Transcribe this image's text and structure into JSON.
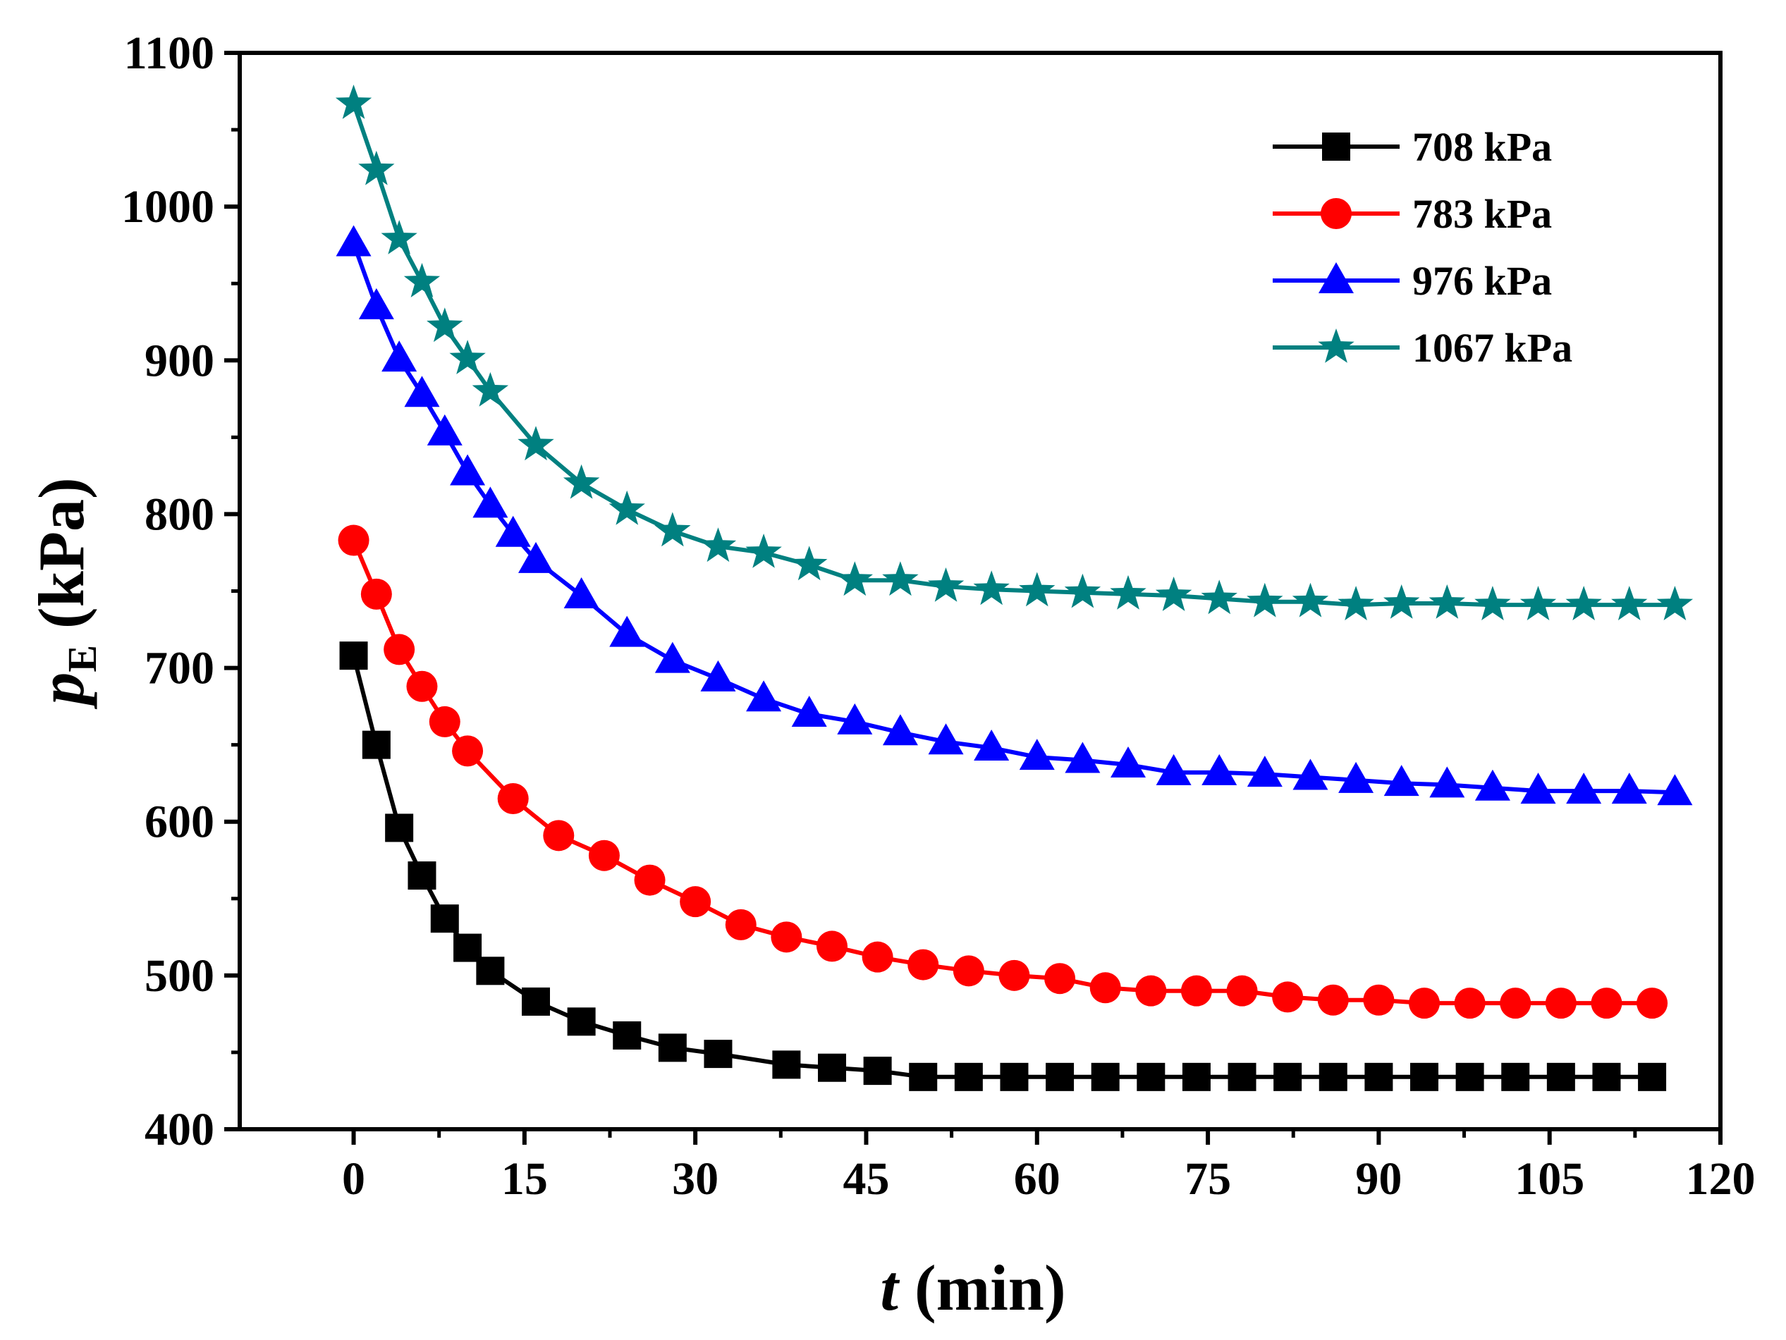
{
  "chart_data": {
    "type": "line",
    "title": "",
    "xlabel": {
      "var": "t",
      "unit": "(min)"
    },
    "ylabel": {
      "var": "p",
      "sub": "E",
      "unit": "(kPa)"
    },
    "xlim": [
      -10,
      120
    ],
    "ylim": [
      400,
      1100
    ],
    "xticks": [
      0,
      15,
      30,
      45,
      60,
      75,
      90,
      105,
      120
    ],
    "yticks": [
      400,
      500,
      600,
      700,
      800,
      900,
      1000,
      1100
    ],
    "legend_position": "top-right",
    "grid": false,
    "series": [
      {
        "name": "708 kPa",
        "color": "#000000",
        "marker": "square",
        "x": [
          0,
          2,
          4,
          6,
          8,
          10,
          12,
          16,
          20,
          24,
          28,
          32,
          38,
          42,
          46,
          50,
          54,
          58,
          62,
          66,
          70,
          74,
          78,
          82,
          86,
          90,
          94,
          98,
          102,
          106,
          110,
          114
        ],
        "y": [
          708,
          650,
          596,
          565,
          537,
          518,
          503,
          483,
          470,
          461,
          453,
          449,
          442,
          440,
          438,
          434,
          434,
          434,
          434,
          434,
          434,
          434,
          434,
          434,
          434,
          434,
          434,
          434,
          434,
          434,
          434,
          434
        ]
      },
      {
        "name": "783 kPa",
        "color": "#ff0000",
        "marker": "circle",
        "x": [
          0,
          2,
          4,
          6,
          8,
          10,
          14,
          18,
          22,
          26,
          30,
          34,
          38,
          42,
          46,
          50,
          54,
          58,
          62,
          66,
          70,
          74,
          78,
          82,
          86,
          90,
          94,
          98,
          102,
          106,
          110,
          114
        ],
        "y": [
          783,
          748,
          712,
          688,
          665,
          646,
          615,
          591,
          578,
          562,
          548,
          533,
          525,
          519,
          512,
          507,
          503,
          500,
          498,
          492,
          490,
          490,
          490,
          486,
          484,
          484,
          482,
          482,
          482,
          482,
          482,
          482
        ]
      },
      {
        "name": "976 kPa",
        "color": "#0000ff",
        "marker": "triangle",
        "x": [
          0,
          2,
          4,
          6,
          8,
          10,
          12,
          14,
          16,
          20,
          24,
          28,
          32,
          36,
          40,
          44,
          48,
          52,
          56,
          60,
          64,
          68,
          72,
          76,
          80,
          84,
          88,
          92,
          96,
          100,
          104,
          108,
          112,
          116
        ],
        "y": [
          976,
          935,
          901,
          878,
          853,
          827,
          806,
          787,
          770,
          747,
          722,
          705,
          693,
          680,
          670,
          665,
          658,
          652,
          648,
          642,
          640,
          637,
          632,
          632,
          631,
          629,
          627,
          625,
          624,
          622,
          620,
          620,
          620,
          619
        ]
      },
      {
        "name": "1067 kPa",
        "color": "#008080",
        "marker": "star",
        "x": [
          0,
          2,
          4,
          6,
          8,
          10,
          12,
          16,
          20,
          24,
          28,
          32,
          36,
          40,
          44,
          48,
          52,
          56,
          60,
          64,
          68,
          72,
          76,
          80,
          84,
          88,
          92,
          96,
          100,
          104,
          108,
          112,
          116
        ],
        "y": [
          1067,
          1024,
          979,
          951,
          922,
          901,
          880,
          845,
          820,
          803,
          789,
          779,
          775,
          767,
          757,
          757,
          753,
          751,
          750,
          749,
          748,
          747,
          745,
          743,
          743,
          741,
          742,
          742,
          741,
          741,
          741,
          741,
          741
        ]
      }
    ]
  }
}
